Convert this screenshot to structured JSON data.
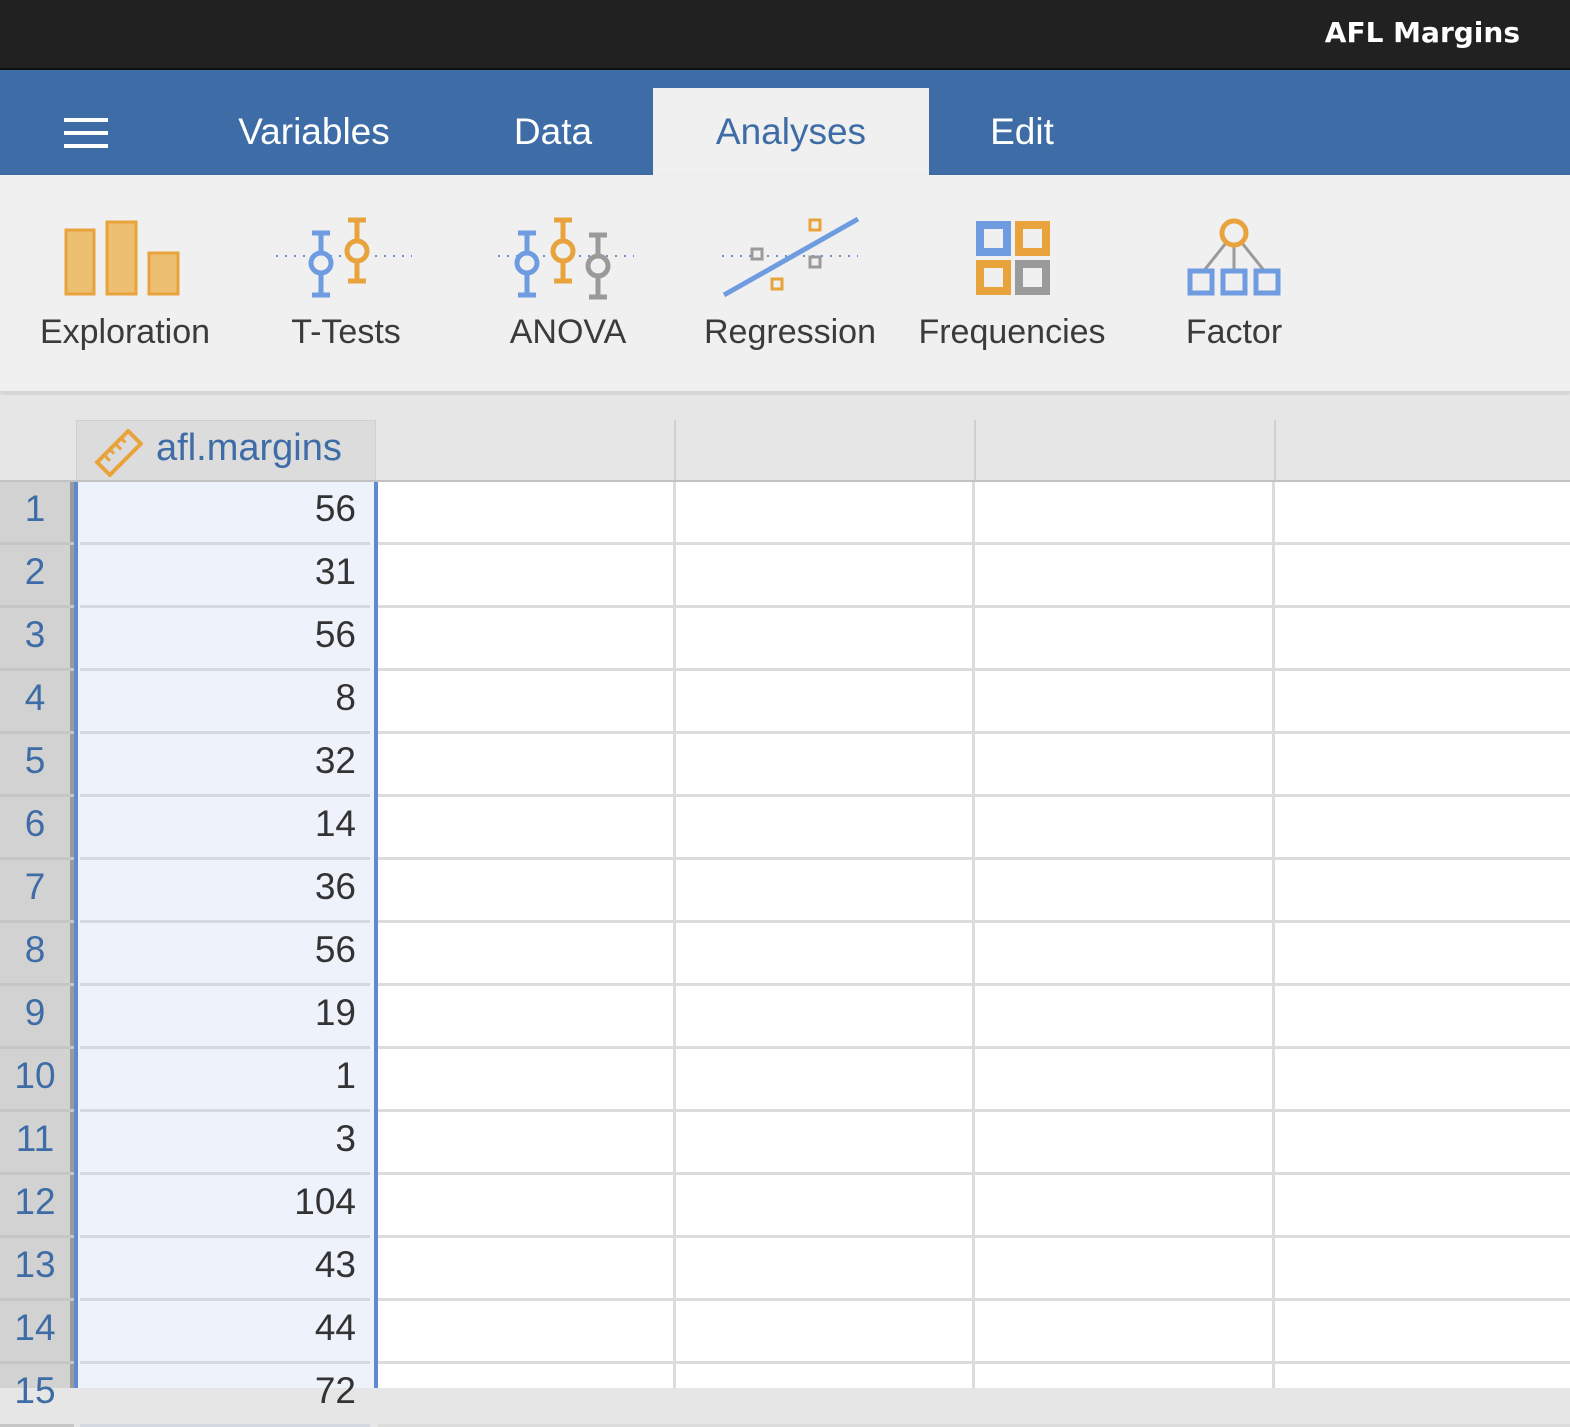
{
  "window": {
    "title": "AFL Margins"
  },
  "menu": {
    "tabs": [
      {
        "label": "Variables"
      },
      {
        "label": "Data"
      },
      {
        "label": "Analyses",
        "active": true
      },
      {
        "label": "Edit"
      }
    ]
  },
  "ribbon": {
    "tools": [
      {
        "label": "Exploration",
        "icon": "bar-chart-icon"
      },
      {
        "label": "T-Tests",
        "icon": "t-test-icon"
      },
      {
        "label": "ANOVA",
        "icon": "anova-icon"
      },
      {
        "label": "Regression",
        "icon": "regression-icon"
      },
      {
        "label": "Frequencies",
        "icon": "frequencies-icon"
      },
      {
        "label": "Factor",
        "icon": "factor-icon"
      }
    ]
  },
  "spreadsheet": {
    "columns": [
      {
        "name": "afl.margins",
        "type_icon": "ruler-icon"
      },
      {
        "name": ""
      },
      {
        "name": ""
      },
      {
        "name": ""
      }
    ],
    "rows": [
      {
        "num": "1",
        "value": "56"
      },
      {
        "num": "2",
        "value": "31"
      },
      {
        "num": "3",
        "value": "56"
      },
      {
        "num": "4",
        "value": "8"
      },
      {
        "num": "5",
        "value": "32"
      },
      {
        "num": "6",
        "value": "14"
      },
      {
        "num": "7",
        "value": "36"
      },
      {
        "num": "8",
        "value": "56"
      },
      {
        "num": "9",
        "value": "19"
      },
      {
        "num": "10",
        "value": "1"
      },
      {
        "num": "11",
        "value": "3"
      },
      {
        "num": "12",
        "value": "104"
      },
      {
        "num": "13",
        "value": "43"
      },
      {
        "num": "14",
        "value": "44"
      },
      {
        "num": "15",
        "value": "72"
      }
    ]
  },
  "colors": {
    "accent": "#3e6ca6",
    "orange": "#e8a33d",
    "selection_fill": "#eef2fb",
    "selection_border": "#5f8ad0"
  }
}
